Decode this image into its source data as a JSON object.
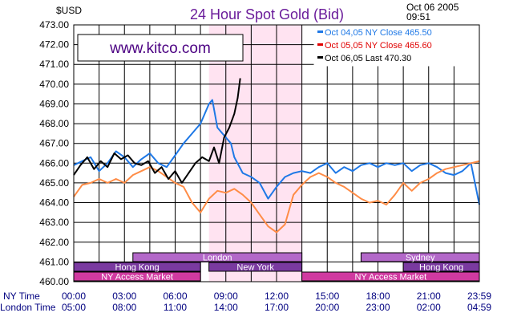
{
  "header": {
    "unit": "$USD",
    "title": "24 Hour Spot Gold (Bid)",
    "date": "Oct 06 2005",
    "time": "09:51",
    "watermark": "www.kitco.com"
  },
  "colors": {
    "title": "#6a1b9a",
    "oct04": "#1e78e6",
    "oct05": "#ff8c46",
    "oct06": "#000000",
    "legend_oct04": "#1e78e6",
    "legend_oct05": "#e00000",
    "legend_oct06": "#000000",
    "nyWindow": "#ffe3f1",
    "sessionLight": "#b368c9",
    "sessionDark": "#7a3aa0",
    "sessionPink": "#d03aa0",
    "timeLabels": "#000080"
  },
  "legend": [
    {
      "label": "Oct  04,05   NY  Close  465.50",
      "color_key": "legend_oct04"
    },
    {
      "label": "Oct  05,05   NY  Close  465.60",
      "color_key": "legend_oct05"
    },
    {
      "label": "Oct  06,05   Last  470.30",
      "color_key": "legend_oct06"
    }
  ],
  "time_axis": {
    "ny_label": "NY Time",
    "london_label": "London Time",
    "ny_ticks": [
      "00:00",
      "03:00",
      "06:00",
      "09:00",
      "12:00",
      "15:00",
      "18:00",
      "21:00",
      "23:59"
    ],
    "london_ticks": [
      "05:00",
      "08:00",
      "11:00",
      "14:00",
      "17:00",
      "20:00",
      "23:00",
      "02:00",
      "04:59"
    ]
  },
  "sessions": [
    {
      "label": "London",
      "start": 3.5,
      "end": 13.5,
      "row": 0,
      "color_key": "sessionLight"
    },
    {
      "label": "Sydney",
      "start": 17.0,
      "end": 24.0,
      "row": 0,
      "color_key": "sessionLight"
    },
    {
      "label": "Hong  Kong",
      "start": 0.0,
      "end": 7.5,
      "row": 1,
      "color_key": "sessionDark"
    },
    {
      "label": "New  York",
      "start": 8.0,
      "end": 13.5,
      "row": 1,
      "color_key": "sessionDark"
    },
    {
      "label": "Hong  Kong",
      "start": 19.5,
      "end": 24.0,
      "row": 1,
      "color_key": "sessionDark"
    },
    {
      "label": "NY  Access  Market",
      "start": 0.0,
      "end": 7.5,
      "row": 2,
      "color_key": "sessionPink"
    },
    {
      "label": "NY  Access  Market",
      "start": 13.5,
      "end": 24.0,
      "row": 2,
      "color_key": "sessionPink"
    }
  ],
  "chart_data": {
    "type": "line",
    "title": "24 Hour Spot Gold (Bid)",
    "ylabel": "$USD",
    "xlabel": "NY Time",
    "x_range": [
      0,
      24
    ],
    "ylim": [
      460.0,
      473.0
    ],
    "yticks": [
      460.0,
      461.0,
      462.0,
      463.0,
      464.0,
      465.0,
      466.0,
      467.0,
      468.0,
      469.0,
      470.0,
      471.0,
      472.0,
      473.0
    ],
    "grid": true,
    "legend_position": "top-right",
    "highlight_band": {
      "x_start": 8.0,
      "x_end": 13.5
    },
    "series": [
      {
        "name": "Oct 04,05 NY Close 465.50",
        "color_key": "oct04",
        "points": [
          [
            0.0,
            465.9
          ],
          [
            0.5,
            466.1
          ],
          [
            1.0,
            466.3
          ],
          [
            1.5,
            465.6
          ],
          [
            2.0,
            466.0
          ],
          [
            2.5,
            466.6
          ],
          [
            3.0,
            466.3
          ],
          [
            3.5,
            465.8
          ],
          [
            4.0,
            466.2
          ],
          [
            4.5,
            466.5
          ],
          [
            5.0,
            466.0
          ],
          [
            5.5,
            465.8
          ],
          [
            6.0,
            466.4
          ],
          [
            6.5,
            467.0
          ],
          [
            7.0,
            467.5
          ],
          [
            7.5,
            468.0
          ],
          [
            8.0,
            469.0
          ],
          [
            8.2,
            469.2
          ],
          [
            8.5,
            467.8
          ],
          [
            9.0,
            467.3
          ],
          [
            9.3,
            467.0
          ],
          [
            9.5,
            466.3
          ],
          [
            10.0,
            465.5
          ],
          [
            10.5,
            465.3
          ],
          [
            11.0,
            465.0
          ],
          [
            11.5,
            464.2
          ],
          [
            12.0,
            464.8
          ],
          [
            12.5,
            465.3
          ],
          [
            13.0,
            465.5
          ],
          [
            13.5,
            465.6
          ],
          [
            14.0,
            465.5
          ],
          [
            14.5,
            465.8
          ],
          [
            15.0,
            466.0
          ],
          [
            15.5,
            465.5
          ],
          [
            16.0,
            465.8
          ],
          [
            16.5,
            465.6
          ],
          [
            17.0,
            465.9
          ],
          [
            17.5,
            466.0
          ],
          [
            18.0,
            465.8
          ],
          [
            18.5,
            466.0
          ],
          [
            19.0,
            465.9
          ],
          [
            19.5,
            466.0
          ],
          [
            20.0,
            465.6
          ],
          [
            20.5,
            465.9
          ],
          [
            21.0,
            466.0
          ],
          [
            21.5,
            465.8
          ],
          [
            22.0,
            465.5
          ],
          [
            22.5,
            465.4
          ],
          [
            23.0,
            465.6
          ],
          [
            23.5,
            466.0
          ],
          [
            24.0,
            463.9
          ]
        ]
      },
      {
        "name": "Oct 05,05 NY Close 465.60",
        "color_key": "oct05",
        "points": [
          [
            0.0,
            464.3
          ],
          [
            0.5,
            464.9
          ],
          [
            1.0,
            465.0
          ],
          [
            1.5,
            465.2
          ],
          [
            2.0,
            465.0
          ],
          [
            2.5,
            465.2
          ],
          [
            3.0,
            465.0
          ],
          [
            3.5,
            465.4
          ],
          [
            4.0,
            465.6
          ],
          [
            4.5,
            465.8
          ],
          [
            5.0,
            465.6
          ],
          [
            5.5,
            465.3
          ],
          [
            6.0,
            465.0
          ],
          [
            6.5,
            464.8
          ],
          [
            7.0,
            464.0
          ],
          [
            7.5,
            463.5
          ],
          [
            8.0,
            464.2
          ],
          [
            8.5,
            464.6
          ],
          [
            9.0,
            464.5
          ],
          [
            9.5,
            464.7
          ],
          [
            10.0,
            464.4
          ],
          [
            10.5,
            464.0
          ],
          [
            11.0,
            463.4
          ],
          [
            11.5,
            462.8
          ],
          [
            12.0,
            462.5
          ],
          [
            12.5,
            462.9
          ],
          [
            13.0,
            464.4
          ],
          [
            13.5,
            464.9
          ],
          [
            14.0,
            465.3
          ],
          [
            14.5,
            465.5
          ],
          [
            15.0,
            465.3
          ],
          [
            15.5,
            465.0
          ],
          [
            16.0,
            464.8
          ],
          [
            16.5,
            464.5
          ],
          [
            17.0,
            464.2
          ],
          [
            17.5,
            464.0
          ],
          [
            18.0,
            464.1
          ],
          [
            18.5,
            463.9
          ],
          [
            19.0,
            464.4
          ],
          [
            19.5,
            465.0
          ],
          [
            20.0,
            464.6
          ],
          [
            20.5,
            465.0
          ],
          [
            21.0,
            465.2
          ],
          [
            21.5,
            465.5
          ],
          [
            22.0,
            465.7
          ],
          [
            22.5,
            465.8
          ],
          [
            23.0,
            465.9
          ],
          [
            23.5,
            466.0
          ],
          [
            24.0,
            466.1
          ]
        ]
      },
      {
        "name": "Oct 06,05 Last 470.30",
        "color_key": "oct06",
        "points": [
          [
            0.0,
            465.4
          ],
          [
            0.4,
            465.9
          ],
          [
            0.8,
            466.3
          ],
          [
            1.2,
            465.7
          ],
          [
            1.6,
            466.1
          ],
          [
            2.0,
            465.8
          ],
          [
            2.4,
            466.5
          ],
          [
            2.8,
            466.2
          ],
          [
            3.2,
            466.4
          ],
          [
            3.6,
            466.0
          ],
          [
            4.0,
            465.9
          ],
          [
            4.4,
            466.1
          ],
          [
            4.8,
            465.5
          ],
          [
            5.2,
            465.8
          ],
          [
            5.6,
            465.2
          ],
          [
            6.0,
            465.6
          ],
          [
            6.4,
            465.0
          ],
          [
            6.8,
            465.5
          ],
          [
            7.2,
            466.0
          ],
          [
            7.6,
            466.3
          ],
          [
            8.0,
            466.1
          ],
          [
            8.3,
            466.8
          ],
          [
            8.6,
            466.0
          ],
          [
            8.9,
            467.3
          ],
          [
            9.2,
            467.8
          ],
          [
            9.5,
            468.5
          ],
          [
            9.7,
            469.3
          ],
          [
            9.85,
            470.3
          ]
        ]
      }
    ]
  }
}
